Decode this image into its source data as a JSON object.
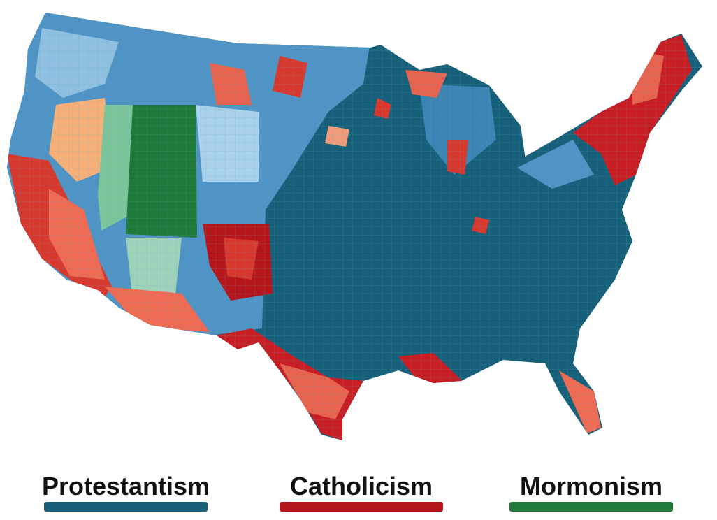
{
  "map": {
    "legend": [
      {
        "label": "Protestantism",
        "color": "#17607a"
      },
      {
        "label": "Catholicism",
        "color": "#b5161b"
      },
      {
        "label": "Mormonism",
        "color": "#1f7a3a"
      }
    ]
  }
}
